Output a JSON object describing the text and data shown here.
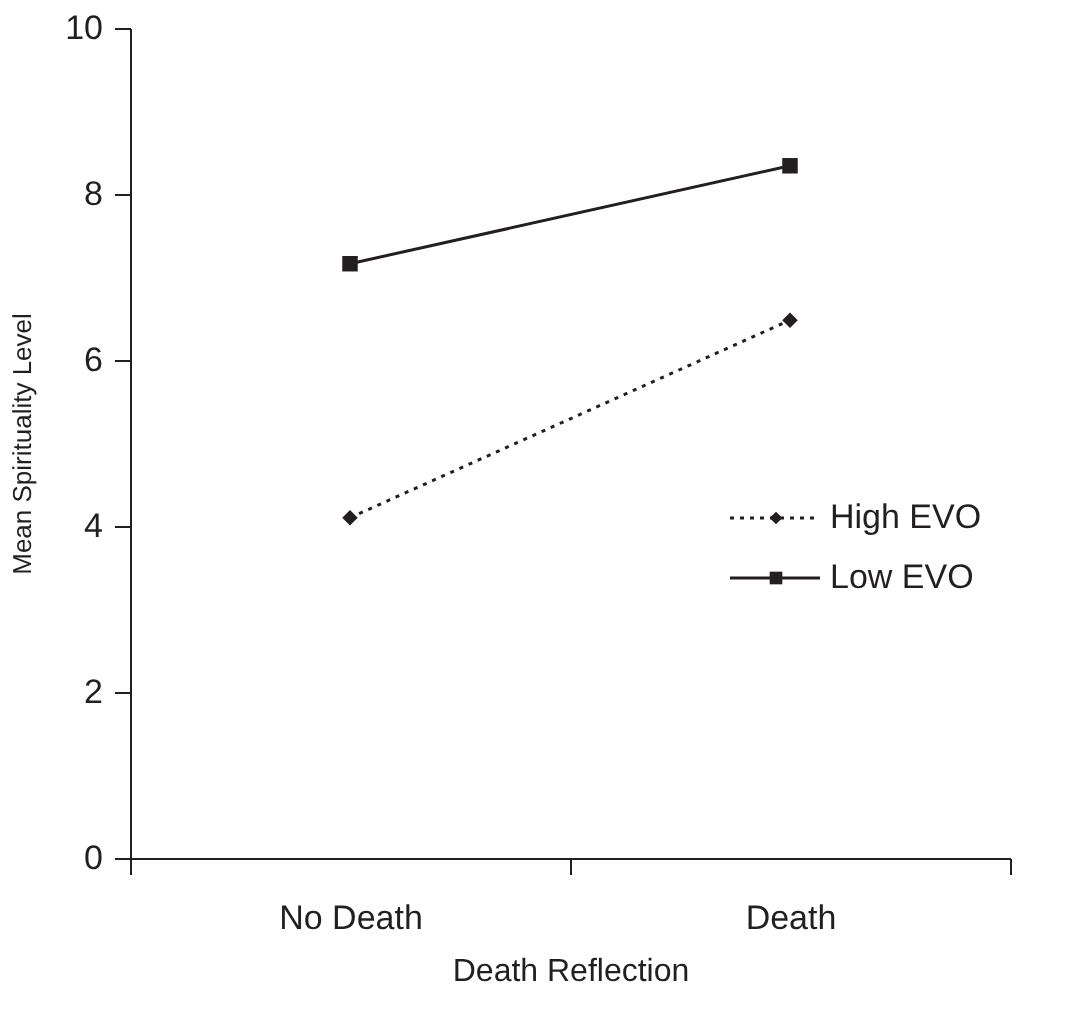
{
  "chart_data": {
    "type": "line",
    "xlabel": "Death Reflection",
    "ylabel": "Mean Spirituality Level",
    "categories": [
      "No Death",
      "Death"
    ],
    "series": [
      {
        "name": "High EVO",
        "color": "#231f20",
        "values": [
          4.1,
          6.48
        ],
        "marker": "diamond",
        "line_style": "dotted"
      },
      {
        "name": "Low EVO",
        "color": "#231f20",
        "values": [
          7.16,
          8.34
        ],
        "marker": "square",
        "line_style": "solid"
      }
    ],
    "ylim": [
      0,
      10
    ],
    "yticks": [
      0,
      2,
      4,
      6,
      8,
      10
    ],
    "grid": false,
    "legend": "right"
  }
}
